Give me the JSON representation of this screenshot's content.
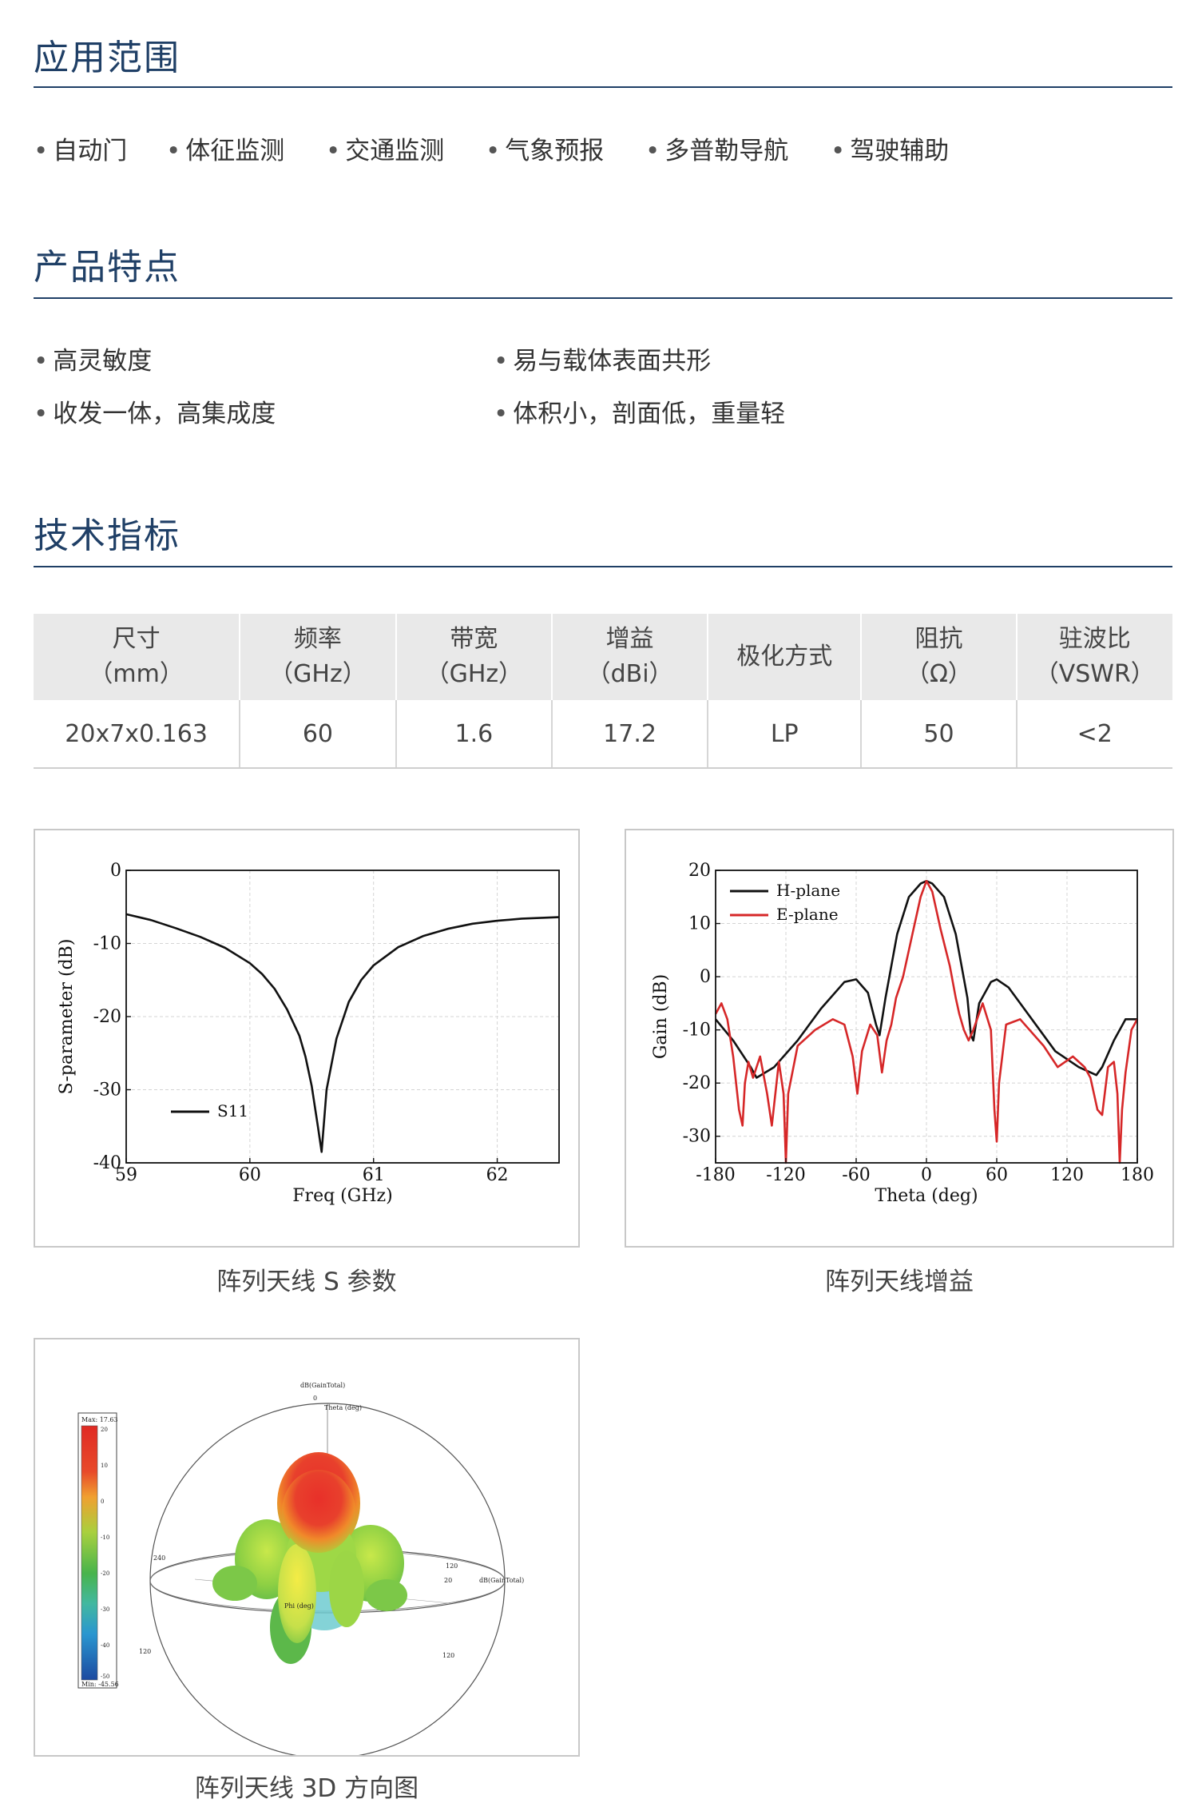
{
  "sections": {
    "applications": {
      "title": "应用范围",
      "items": [
        "自动门",
        "体征监测",
        "交通监测",
        "气象预报",
        "多普勒导航",
        "驾驶辅助"
      ]
    },
    "features": {
      "title": "产品特点",
      "items": [
        "高灵敏度",
        "易与载体表面共形",
        "收发一体，高集成度",
        "体积小，剖面低，重量轻"
      ]
    },
    "specs": {
      "title": "技术指标",
      "headers": [
        {
          "name": "尺寸",
          "unit": "（mm）"
        },
        {
          "name": "频率",
          "unit": "（GHz）"
        },
        {
          "name": "带宽",
          "unit": "（GHz）"
        },
        {
          "name": "增益",
          "unit": "（dBi）"
        },
        {
          "name": "极化方式",
          "unit": ""
        },
        {
          "name": "阻抗",
          "unit": "（Ω）"
        },
        {
          "name": "驻波比",
          "unit": "（VSWR）"
        }
      ],
      "values": [
        "20x7x0.163",
        "60",
        "1.6",
        "17.2",
        "LP",
        "50",
        "<2"
      ]
    }
  },
  "bullet": "•",
  "figures": {
    "s_param_caption": "阵列天线 S 参数",
    "gain_caption": "阵列天线增益",
    "pattern3d_caption": "阵列天线 3D 方向图",
    "pattern3d": {
      "title": "dB(GainTotal)",
      "theta_label": "Theta (deg)",
      "phi_label": "Phi (deg)",
      "side_label": "dB(GainTotal)",
      "max_label": "Max: 17.63",
      "min_label": "Min: -45.56",
      "scale_ticks": [
        "20",
        "10",
        "0",
        "-10",
        "-20",
        "-30",
        "-40",
        "-50"
      ],
      "angle_labels": [
        "0",
        "240",
        "120",
        "120",
        "120",
        "20"
      ]
    }
  },
  "chart_data": [
    {
      "type": "line",
      "title": "",
      "xlabel": "Freq (GHz)",
      "ylabel": "S-parameter (dB)",
      "xlim": [
        59,
        62.5
      ],
      "ylim": [
        -40,
        0
      ],
      "xticks": [
        "59",
        "60",
        "61",
        "62"
      ],
      "yticks": [
        "0",
        "-10",
        "-20",
        "-30",
        "-40"
      ],
      "grid": true,
      "legend": "lower-left",
      "series": [
        {
          "name": "S11",
          "color": "#111111",
          "x": [
            59.0,
            59.2,
            59.4,
            59.6,
            59.8,
            60.0,
            60.1,
            60.2,
            60.3,
            60.4,
            60.45,
            60.5,
            60.55,
            60.58,
            60.62,
            60.7,
            60.8,
            60.9,
            61.0,
            61.2,
            61.4,
            61.6,
            61.8,
            62.0,
            62.2,
            62.5
          ],
          "y": [
            -6.0,
            -6.8,
            -7.9,
            -9.1,
            -10.6,
            -12.7,
            -14.2,
            -16.2,
            -19.0,
            -22.6,
            -25.5,
            -29.5,
            -35.0,
            -38.5,
            -30.0,
            -23.0,
            -18.0,
            -15.0,
            -13.0,
            -10.5,
            -9.0,
            -8.0,
            -7.3,
            -6.9,
            -6.6,
            -6.4
          ]
        }
      ]
    },
    {
      "type": "line",
      "title": "",
      "xlabel": "Theta (deg)",
      "ylabel": "Gain (dB)",
      "xlim": [
        -180,
        180
      ],
      "ylim": [
        -35,
        20
      ],
      "xticks": [
        "-180",
        "-120",
        "-60",
        "0",
        "60",
        "120",
        "180"
      ],
      "yticks": [
        "20",
        "10",
        "0",
        "-10",
        "-20",
        "-30"
      ],
      "grid": true,
      "legend": "top-left",
      "series": [
        {
          "name": "H-plane",
          "color": "#111111",
          "x": [
            -180,
            -165,
            -150,
            -145,
            -130,
            -110,
            -90,
            -70,
            -60,
            -50,
            -43,
            -40,
            -35,
            -25,
            -15,
            -5,
            0,
            5,
            15,
            25,
            35,
            38,
            40,
            45,
            55,
            60,
            70,
            90,
            110,
            130,
            145,
            150,
            160,
            170,
            180
          ],
          "y": [
            -8,
            -12,
            -17,
            -19,
            -17,
            -12,
            -6,
            -1,
            -0.5,
            -3,
            -9,
            -11,
            -4,
            8,
            15,
            17.5,
            18,
            17.5,
            15,
            8,
            -4,
            -11,
            -12,
            -5,
            -1,
            -0.5,
            -2,
            -8,
            -14,
            -17,
            -18.5,
            -17,
            -12,
            -8,
            -8
          ]
        },
        {
          "name": "E-plane",
          "color": "#d62728",
          "x": [
            -180,
            -175,
            -170,
            -165,
            -160,
            -157,
            -155,
            -152,
            -148,
            -142,
            -136,
            -132,
            -126,
            -122,
            -120,
            -118,
            -110,
            -95,
            -80,
            -70,
            -63,
            -59,
            -55,
            -48,
            -42,
            -38,
            -34,
            -30,
            -26,
            -20,
            -12,
            -5,
            0,
            5,
            12,
            20,
            25,
            28,
            32,
            36,
            40,
            48,
            55,
            58,
            60,
            62,
            68,
            80,
            100,
            112,
            125,
            135,
            140,
            146,
            150,
            155,
            160,
            163,
            165,
            167,
            170,
            175,
            180
          ],
          "y": [
            -7,
            -5,
            -8,
            -15,
            -25,
            -28,
            -20,
            -16,
            -19,
            -15,
            -22,
            -28,
            -16,
            -22,
            -35,
            -22,
            -13,
            -10,
            -8,
            -9,
            -15,
            -22,
            -14,
            -9,
            -11,
            -18,
            -12,
            -9,
            -4,
            0,
            8,
            15,
            18,
            16,
            9,
            2,
            -4,
            -7,
            -10,
            -12,
            -10,
            -5,
            -10,
            -25,
            -31,
            -20,
            -9,
            -8,
            -13,
            -17,
            -15,
            -17,
            -19,
            -25,
            -26,
            -17,
            -16,
            -22,
            -35,
            -25,
            -18,
            -10,
            -8
          ]
        }
      ]
    }
  ]
}
